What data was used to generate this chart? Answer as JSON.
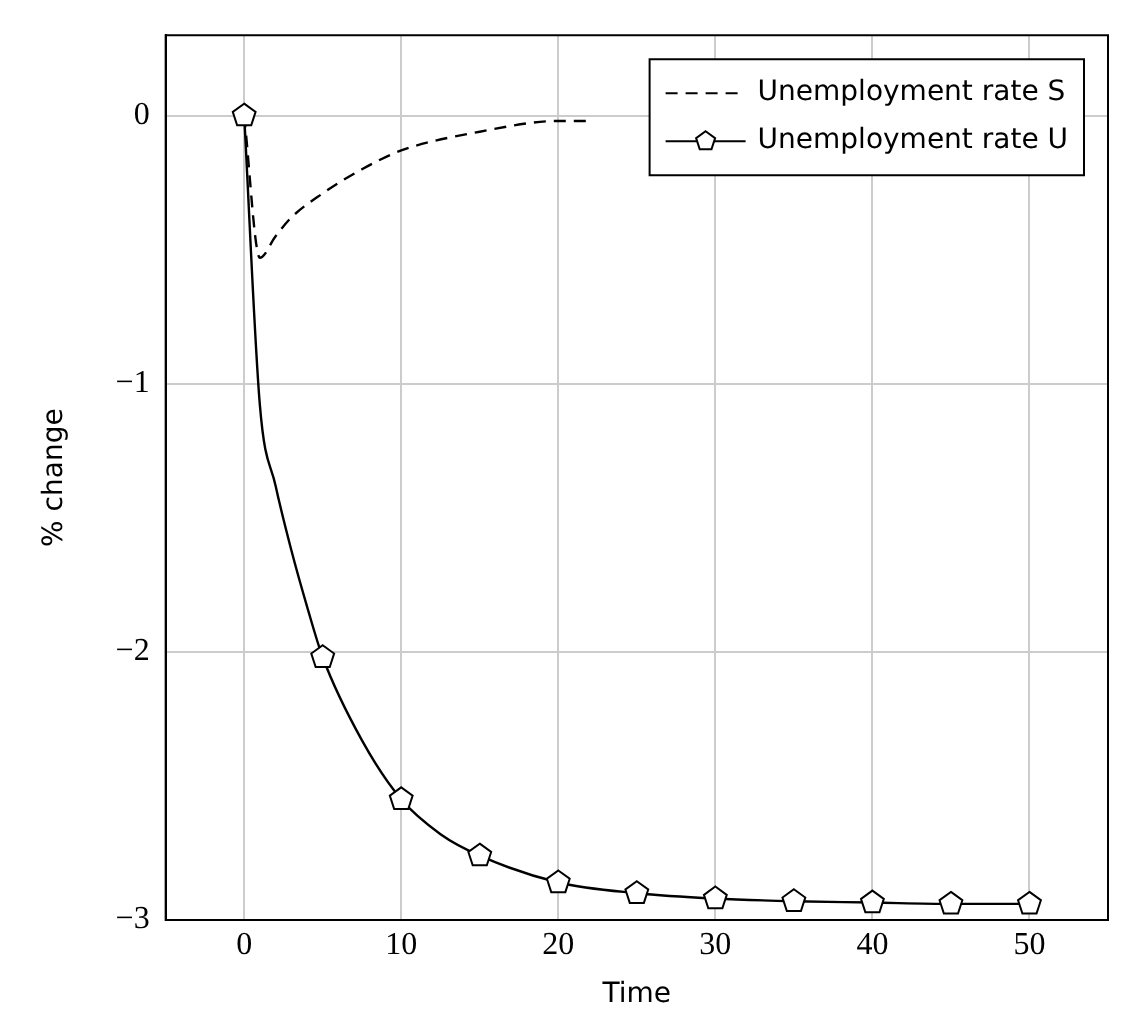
{
  "chart_data": {
    "type": "line",
    "xlabel": "Time",
    "ylabel": "% change",
    "xlim": [
      -5,
      55
    ],
    "ylim": [
      -3,
      0.3
    ],
    "xticks": [
      0,
      10,
      20,
      30,
      40,
      50
    ],
    "yticks": [
      -3,
      -2,
      -1,
      0
    ],
    "grid": true,
    "legend": "top right",
    "series": [
      {
        "name": "Unemployment rate S",
        "color": "#000000",
        "line_style": "dashed",
        "marker": "none",
        "x": [
          0,
          1,
          2,
          3,
          5,
          7.5,
          10,
          15,
          20,
          22
        ],
        "values": [
          0,
          -0.53,
          -0.45,
          -0.38,
          -0.29,
          -0.2,
          -0.13,
          -0.06,
          -0.02,
          -0.02
        ]
      },
      {
        "name": "Unemployment rate U",
        "color": "#000000",
        "line_style": "solid",
        "x": [
          0,
          1,
          2,
          3,
          4,
          5,
          7.5,
          10,
          12.5,
          15,
          20,
          25,
          30,
          35,
          40,
          45,
          50
        ],
        "values": [
          0,
          -1.08,
          -1.38,
          -1.62,
          -1.83,
          -2.02,
          -2.33,
          -2.55,
          -2.68,
          -2.76,
          -2.86,
          -2.9,
          -2.92,
          -2.93,
          -2.935,
          -2.94,
          -2.94
        ]
      }
    ]
  }
}
